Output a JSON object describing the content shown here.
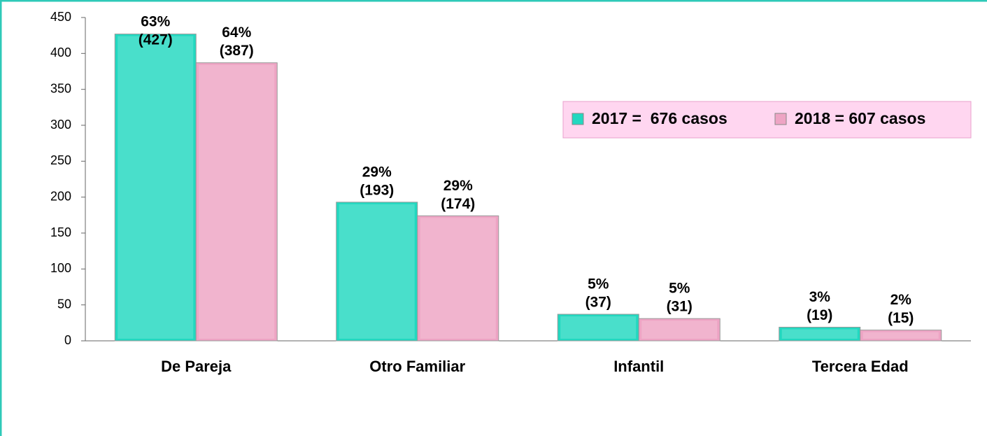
{
  "chart_data": {
    "type": "bar",
    "categories": [
      "De Pareja",
      "Otro Familiar",
      "Infantil",
      "Tercera Edad"
    ],
    "series": [
      {
        "name": "2017 =  676 casos",
        "color": "#22d8c0",
        "values": [
          427,
          193,
          37,
          19
        ],
        "value_labels": [
          "(427)",
          "(193)",
          "(37)",
          "(19)"
        ],
        "percent_labels": [
          "63%",
          "29%",
          "5%",
          "3%"
        ]
      },
      {
        "name": "2018 = 607 casos",
        "color": "#eea4c4",
        "values": [
          387,
          174,
          31,
          15
        ],
        "value_labels": [
          "(387)",
          "(174)",
          "(31)",
          "(15)"
        ],
        "percent_labels": [
          "64%",
          "29%",
          "5%",
          "2%"
        ]
      }
    ],
    "ylim": [
      0,
      450
    ],
    "yticks": [
      0,
      50,
      100,
      150,
      200,
      250,
      300,
      350,
      400,
      450
    ],
    "legend": "upper right"
  }
}
